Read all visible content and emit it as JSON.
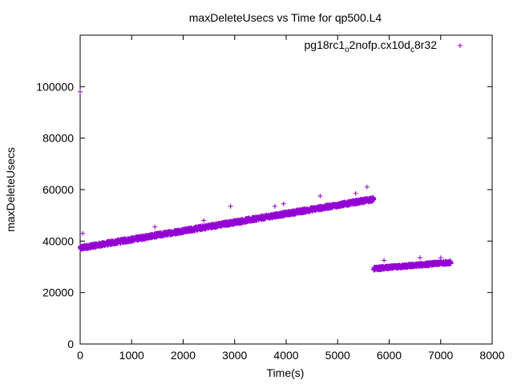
{
  "chart_data": {
    "type": "scatter",
    "title": "maxDeleteUsecs vs Time for qp500.L4",
    "xlabel": "Time(s)",
    "ylabel": "maxDeleteUsecs",
    "xlim": [
      0,
      8000
    ],
    "ylim": [
      0,
      120000
    ],
    "x_ticks": [
      0,
      1000,
      2000,
      3000,
      4000,
      5000,
      6000,
      7000,
      8000
    ],
    "y_ticks": [
      0,
      20000,
      40000,
      60000,
      80000,
      100000
    ],
    "grid": false,
    "legend_position": "top-right",
    "legend": {
      "base": "pg18rc1",
      "sub1": "o",
      "mid": "2nofp.cx10d",
      "sub2": "c",
      "tail": "8r32"
    },
    "marker": "plus",
    "color": "#9400d3",
    "series": [
      {
        "name": "pg18rc1_o2nofp.cx10d_c8r32",
        "segments": [
          {
            "x_start": 0,
            "x_end": 5700,
            "y_start": 37000,
            "y_end": 56000,
            "spread": 1500
          },
          {
            "x_start": 5700,
            "x_end": 7200,
            "y_start": 29000,
            "y_end": 31500,
            "spread": 1200
          }
        ],
        "outliers": [
          [
            0,
            98000
          ],
          [
            50,
            43000
          ],
          [
            2920,
            53500
          ],
          [
            3780,
            53500
          ],
          [
            3950,
            54500
          ],
          [
            4660,
            57500
          ],
          [
            5570,
            61000
          ],
          [
            5350,
            58500
          ],
          [
            1450,
            45500
          ],
          [
            2400,
            48000
          ],
          [
            6600,
            33500
          ],
          [
            7000,
            33500
          ],
          [
            5900,
            32500
          ]
        ]
      }
    ]
  }
}
